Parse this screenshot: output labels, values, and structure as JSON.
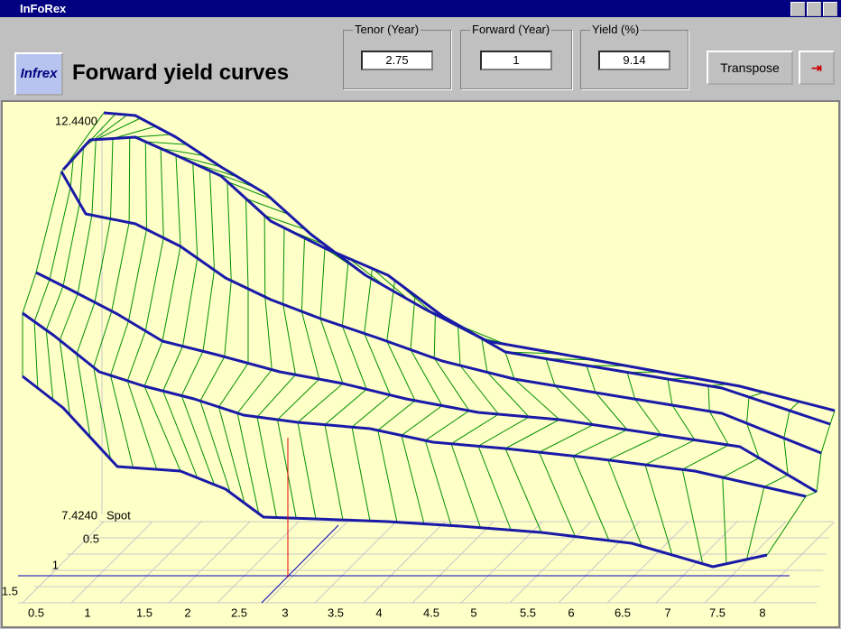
{
  "window": {
    "title": "InFoRex"
  },
  "toolbar": {
    "logo": "Infrex",
    "heading": "Forward yield curves",
    "fields": [
      {
        "label": "Tenor (Year)",
        "value": "2.75"
      },
      {
        "label": "Forward (Year)",
        "value": "1"
      },
      {
        "label": "Yield (%)",
        "value": "9.14"
      }
    ],
    "button": "Transpose"
  },
  "plot": {
    "z_max": "12.4400",
    "z_min": "7.4240",
    "spot": "Spot",
    "depth_labels": [
      "0.5",
      "1",
      "1.5"
    ],
    "x_labels": [
      "0.5",
      "1",
      "1.5",
      "2",
      "2.5",
      "3",
      "3.5",
      "4",
      "4.5",
      "5",
      "5.5",
      "6",
      "6.5",
      "7",
      "7.5",
      "8"
    ]
  }
}
